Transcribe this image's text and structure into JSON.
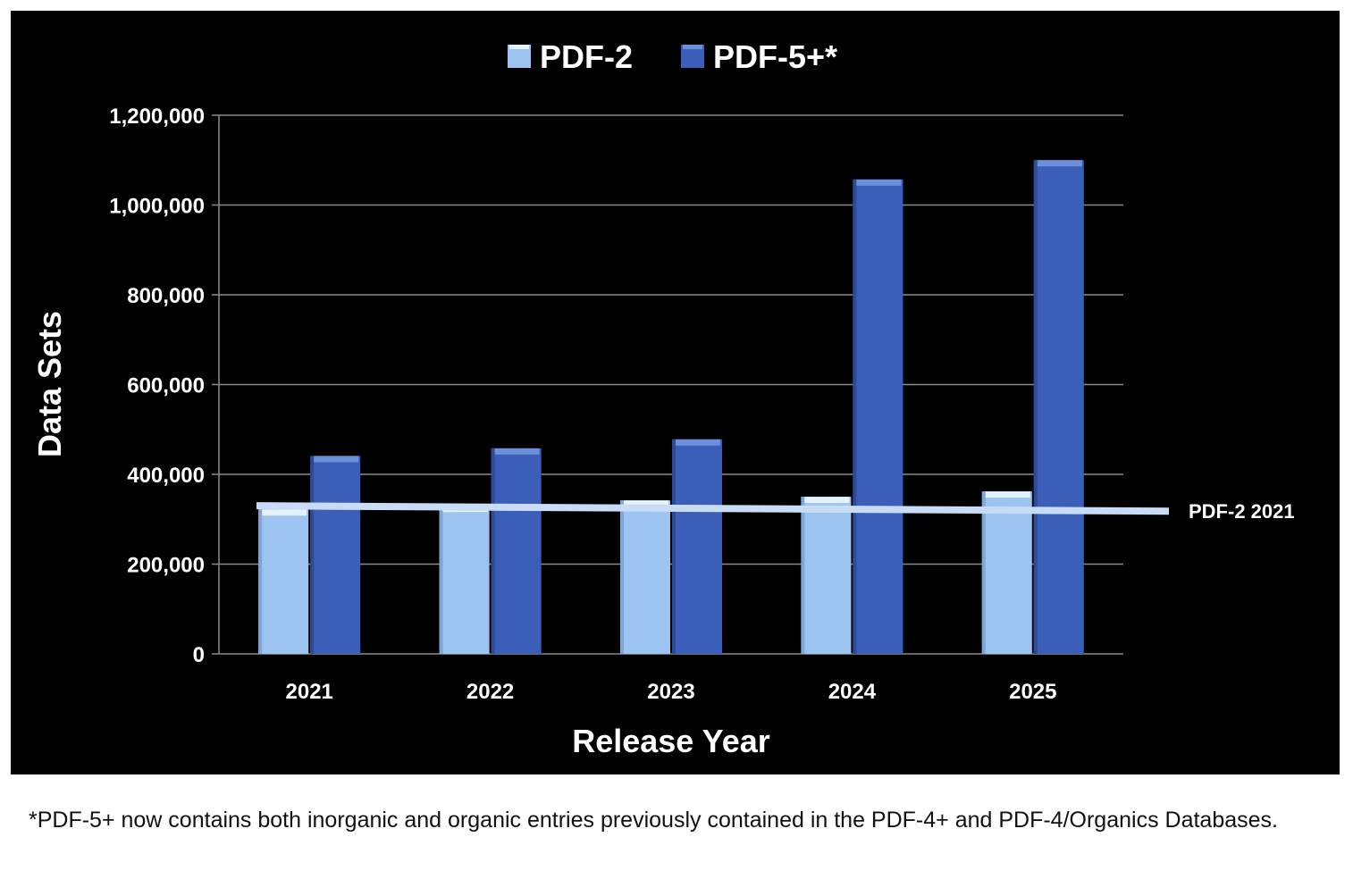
{
  "chart_data": {
    "type": "bar",
    "title": "",
    "xlabel": "Release Year",
    "ylabel": "Data Sets",
    "categories": [
      "2021",
      "2022",
      "2023",
      "2024",
      "2025"
    ],
    "ylim": [
      0,
      1200000
    ],
    "yticks": [
      0,
      200000,
      400000,
      600000,
      800000,
      1000000,
      1200000
    ],
    "ytick_labels": [
      "0",
      "200,000",
      "400,000",
      "600,000",
      "800,000",
      "1,000,000",
      "1,200,000"
    ],
    "series": [
      {
        "name": "PDF-2",
        "values": [
          322000,
          330000,
          342000,
          350000,
          362000
        ],
        "color": "#9dc3f0"
      },
      {
        "name": "PDF-5+*",
        "values": [
          441000,
          458000,
          478000,
          1057000,
          1100000
        ],
        "color": "#3b5fb8"
      }
    ],
    "reference_line": {
      "label": "PDF-2 2021",
      "value_start": 330000,
      "value_end": 318000,
      "color": "#c9dcf5"
    },
    "grid": true,
    "legend_position": "top-center",
    "background": "#000000"
  },
  "footnote": "*PDF-5+ now contains both inorganic and organic entries previously contained in the PDF-4+ and PDF-4/Organics Databases."
}
